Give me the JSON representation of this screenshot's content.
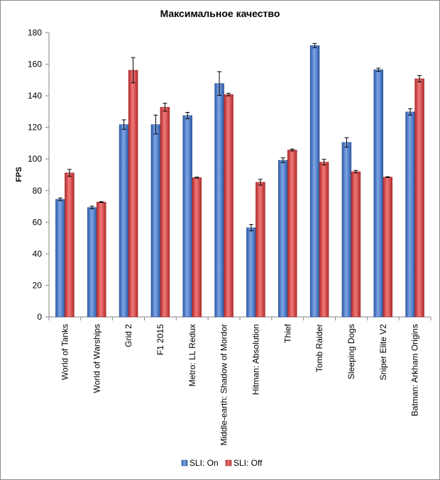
{
  "chart_data": {
    "type": "bar",
    "title": "Максимальное качество",
    "ylabel": "FPS",
    "xlabel": "",
    "ylim": [
      0,
      180
    ],
    "yticks": [
      0,
      20,
      40,
      60,
      80,
      100,
      120,
      140,
      160,
      180
    ],
    "grid": false,
    "legend_position": "bottom",
    "categories": [
      "World of Tanks",
      "World of Warships",
      "Grid 2",
      "F1 2015",
      "Metro: LL Redux",
      "Middle-earth: Shadow of Mordor",
      "Hitman: Absolution",
      "Thief",
      "Tomb Raider",
      "Sleeping Dogs",
      "Sniper Elite V2",
      "Batman: Arkham Origins"
    ],
    "series": [
      {
        "name": "SLI: On",
        "color": "#4a7bc8",
        "values": [
          74.5,
          69.3,
          121.8,
          121.8,
          127.5,
          147.8,
          56.5,
          99.2,
          171.8,
          110.5,
          156.5,
          129.8
        ],
        "errors": [
          0.8,
          0.8,
          3.0,
          6.0,
          2.0,
          7.5,
          2.0,
          1.5,
          1.3,
          3.0,
          1.0,
          2.0
        ]
      },
      {
        "name": "SLI: Off",
        "color": "#d94040",
        "values": [
          91.2,
          72.7,
          156.2,
          132.8,
          88.2,
          140.8,
          85.3,
          105.7,
          98.0,
          92.0,
          88.5,
          150.8
        ],
        "errors": [
          2.2,
          0.3,
          8.0,
          2.5,
          0.3,
          0.8,
          1.8,
          0.6,
          1.8,
          0.8,
          0.3,
          2.0
        ]
      }
    ]
  }
}
